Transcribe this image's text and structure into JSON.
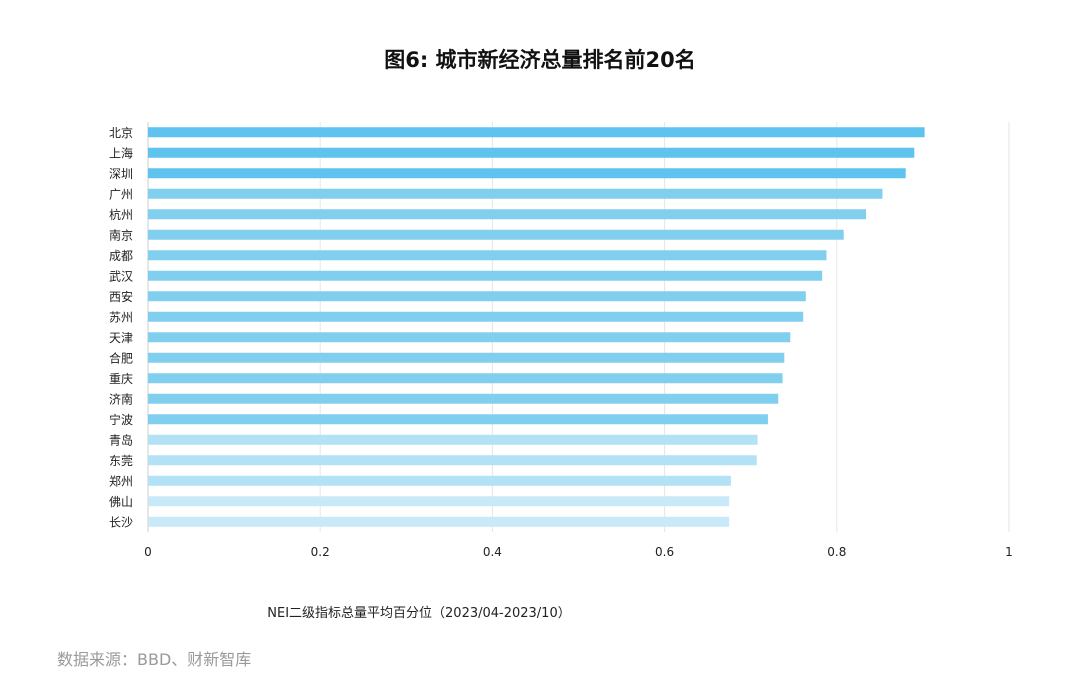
{
  "chart_data": {
    "type": "bar",
    "orientation": "horizontal",
    "title": "图6: 城市新经济总量排名前20名",
    "xlabel": "NEI二级指标总量平均百分位（2023/04-2023/10）",
    "ylabel": "",
    "xlim": [
      0,
      1
    ],
    "xticks": [
      0,
      0.2,
      0.4,
      0.6,
      0.8,
      1
    ],
    "xtick_labels": [
      "0",
      "0.2",
      "0.4",
      "0.6",
      "0.8",
      "1"
    ],
    "grid": true,
    "categories": [
      "北京",
      "上海",
      "深圳",
      "广州",
      "杭州",
      "南京",
      "成都",
      "武汉",
      "西安",
      "苏州",
      "天津",
      "合肥",
      "重庆",
      "济南",
      "宁波",
      "青岛",
      "东莞",
      "郑州",
      "佛山",
      "长沙"
    ],
    "values": [
      0.902,
      0.89,
      0.88,
      0.853,
      0.834,
      0.808,
      0.788,
      0.783,
      0.764,
      0.761,
      0.746,
      0.739,
      0.737,
      0.732,
      0.72,
      0.708,
      0.707,
      0.677,
      0.675,
      0.675
    ],
    "bar_colors": [
      "#5ec3ef",
      "#5ec3ef",
      "#5ec3ef",
      "#80cfef",
      "#80cfef",
      "#80cfef",
      "#80cfef",
      "#80cfef",
      "#80cfef",
      "#80cfef",
      "#80cfef",
      "#80cfef",
      "#80cfef",
      "#80cfef",
      "#80cfef",
      "#b3e1f5",
      "#b3e1f5",
      "#b3e1f5",
      "#c8e9f8",
      "#c8e9f8"
    ]
  },
  "source": "数据来源：BBD、财新智库",
  "colors": {
    "grid": "#e6e6e6",
    "axis": "#cccccc",
    "text": "#222222",
    "source_text": "#9a9a9a"
  }
}
